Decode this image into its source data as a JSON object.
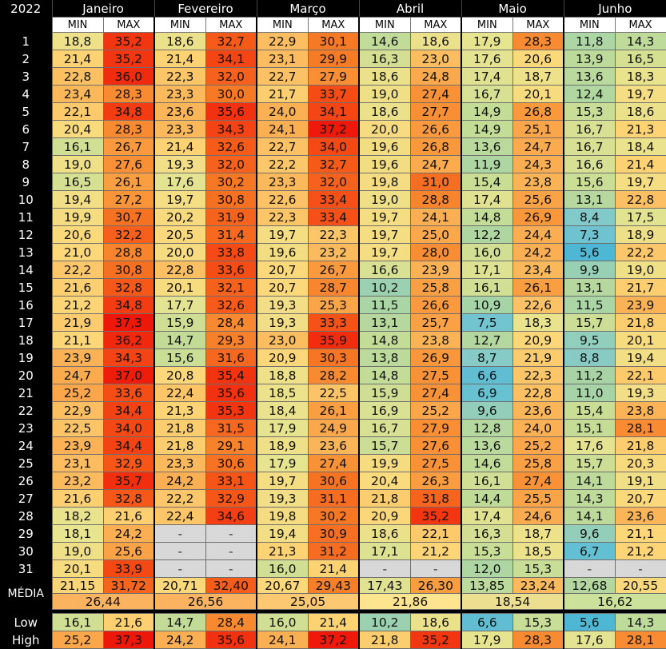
{
  "year": "2022",
  "sub_min": "MIN",
  "sub_max": "MAX",
  "months": [
    "Janeiro",
    "Fevereiro",
    "Março",
    "Abril",
    "Maio",
    "Junho"
  ],
  "days": [
    "1",
    "2",
    "3",
    "4",
    "5",
    "6",
    "7",
    "8",
    "9",
    "10",
    "11",
    "12",
    "13",
    "14",
    "15",
    "16",
    "17",
    "18",
    "19",
    "20",
    "21",
    "22",
    "23",
    "24",
    "25",
    "26",
    "27",
    "28",
    "29",
    "30",
    "31"
  ],
  "values": [
    [
      [
        "18,8",
        "35,2"
      ],
      [
        "21,4",
        "35,2"
      ],
      [
        "22,8",
        "36,0"
      ],
      [
        "23,4",
        "28,3"
      ],
      [
        "22,1",
        "34,8"
      ],
      [
        "20,4",
        "28,3"
      ],
      [
        "16,1",
        "26,7"
      ],
      [
        "19,0",
        "27,6"
      ],
      [
        "16,5",
        "26,1"
      ],
      [
        "19,4",
        "27,2"
      ],
      [
        "19,9",
        "30,7"
      ],
      [
        "20,6",
        "32,2"
      ],
      [
        "21,0",
        "28,8"
      ],
      [
        "22,2",
        "30,8"
      ],
      [
        "21,6",
        "32,8"
      ],
      [
        "21,2",
        "34,8"
      ],
      [
        "21,9",
        "37,3"
      ],
      [
        "21,1",
        "36,2"
      ],
      [
        "23,9",
        "34,3"
      ],
      [
        "24,7",
        "37,0"
      ],
      [
        "25,2",
        "33,6"
      ],
      [
        "22,9",
        "34,4"
      ],
      [
        "22,5",
        "34,0"
      ],
      [
        "23,9",
        "34,4"
      ],
      [
        "23,1",
        "32,9"
      ],
      [
        "23,2",
        "35,7"
      ],
      [
        "21,6",
        "32,8"
      ],
      [
        "18,2",
        "21,6"
      ],
      [
        "18,1",
        "24,2"
      ],
      [
        "19,0",
        "25,6"
      ],
      [
        "20,1",
        "33,9"
      ]
    ],
    [
      [
        "18,6",
        "32,7"
      ],
      [
        "21,4",
        "34,1"
      ],
      [
        "22,3",
        "32,0"
      ],
      [
        "23,3",
        "30,0"
      ],
      [
        "23,6",
        "35,6"
      ],
      [
        "23,3",
        "34,3"
      ],
      [
        "21,4",
        "32,6"
      ],
      [
        "19,3",
        "32,0"
      ],
      [
        "17,6",
        "30,2"
      ],
      [
        "19,7",
        "30,8"
      ],
      [
        "20,2",
        "31,9"
      ],
      [
        "20,5",
        "31,4"
      ],
      [
        "20,0",
        "33,8"
      ],
      [
        "22,8",
        "33,6"
      ],
      [
        "20,1",
        "32,1"
      ],
      [
        "17,7",
        "32,6"
      ],
      [
        "15,9",
        "28,4"
      ],
      [
        "14,7",
        "29,3"
      ],
      [
        "15,6",
        "31,6"
      ],
      [
        "20,8",
        "35,4"
      ],
      [
        "22,4",
        "35,6"
      ],
      [
        "21,3",
        "35,3"
      ],
      [
        "21,8",
        "31,5"
      ],
      [
        "21,8",
        "29,1"
      ],
      [
        "23,3",
        "30,6"
      ],
      [
        "24,2",
        "33,1"
      ],
      [
        "22,2",
        "32,9"
      ],
      [
        "22,4",
        "34,6"
      ],
      [
        "-",
        "-"
      ],
      [
        "-",
        "-"
      ],
      [
        "-",
        "-"
      ]
    ],
    [
      [
        "22,9",
        "30,1"
      ],
      [
        "23,1",
        "29,9"
      ],
      [
        "22,7",
        "27,9"
      ],
      [
        "21,7",
        "33,7"
      ],
      [
        "24,0",
        "34,1"
      ],
      [
        "24,1",
        "37,2"
      ],
      [
        "22,7",
        "34,0"
      ],
      [
        "22,2",
        "32,7"
      ],
      [
        "23,3",
        "32,0"
      ],
      [
        "22,6",
        "33,4"
      ],
      [
        "22,3",
        "33,4"
      ],
      [
        "19,7",
        "22,3"
      ],
      [
        "19,6",
        "23,2"
      ],
      [
        "20,7",
        "26,7"
      ],
      [
        "20,7",
        "28,7"
      ],
      [
        "19,3",
        "25,3"
      ],
      [
        "19,3",
        "33,3"
      ],
      [
        "23,0",
        "35,9"
      ],
      [
        "20,9",
        "30,3"
      ],
      [
        "18,8",
        "28,2"
      ],
      [
        "18,5",
        "22,5"
      ],
      [
        "18,4",
        "26,1"
      ],
      [
        "17,9",
        "24,9"
      ],
      [
        "18,9",
        "23,6"
      ],
      [
        "17,9",
        "27,4"
      ],
      [
        "19,7",
        "30,6"
      ],
      [
        "19,3",
        "31,1"
      ],
      [
        "19,8",
        "30,2"
      ],
      [
        "19,4",
        "30,9"
      ],
      [
        "21,3",
        "31,2"
      ],
      [
        "16,0",
        "21,4"
      ]
    ],
    [
      [
        "14,6",
        "18,6"
      ],
      [
        "16,3",
        "23,0"
      ],
      [
        "18,6",
        "24,8"
      ],
      [
        "19,0",
        "27,4"
      ],
      [
        "18,6",
        "27,7"
      ],
      [
        "20,0",
        "26,6"
      ],
      [
        "19,6",
        "26,8"
      ],
      [
        "19,6",
        "24,7"
      ],
      [
        "19,8",
        "31,0"
      ],
      [
        "19,0",
        "28,8"
      ],
      [
        "19,7",
        "24,1"
      ],
      [
        "19,7",
        "25,0"
      ],
      [
        "19,7",
        "28,0"
      ],
      [
        "16,6",
        "23,9"
      ],
      [
        "10,2",
        "25,8"
      ],
      [
        "11,5",
        "26,6"
      ],
      [
        "13,1",
        "25,7"
      ],
      [
        "14,8",
        "23,8"
      ],
      [
        "13,8",
        "26,9"
      ],
      [
        "14,8",
        "27,5"
      ],
      [
        "15,9",
        "27,4"
      ],
      [
        "16,9",
        "25,2"
      ],
      [
        "16,7",
        "27,9"
      ],
      [
        "15,7",
        "27,6"
      ],
      [
        "19,9",
        "27,5"
      ],
      [
        "20,4",
        "26,3"
      ],
      [
        "21,8",
        "31,8"
      ],
      [
        "20,9",
        "35,2"
      ],
      [
        "18,6",
        "22,1"
      ],
      [
        "17,1",
        "21,2"
      ],
      [
        "-",
        "-"
      ]
    ],
    [
      [
        "17,9",
        "28,3"
      ],
      [
        "17,6",
        "20,6"
      ],
      [
        "17,4",
        "18,7"
      ],
      [
        "16,7",
        "20,1"
      ],
      [
        "14,9",
        "26,8"
      ],
      [
        "14,9",
        "25,1"
      ],
      [
        "13,6",
        "24,7"
      ],
      [
        "11,9",
        "24,3"
      ],
      [
        "15,4",
        "23,8"
      ],
      [
        "17,4",
        "25,6"
      ],
      [
        "14,8",
        "26,9"
      ],
      [
        "12,2",
        "24,4"
      ],
      [
        "16,0",
        "24,2"
      ],
      [
        "17,1",
        "23,4"
      ],
      [
        "16,1",
        "26,1"
      ],
      [
        "10,9",
        "22,6"
      ],
      [
        "7,5",
        "18,3"
      ],
      [
        "12,7",
        "20,9"
      ],
      [
        "8,7",
        "21,9"
      ],
      [
        "6,6",
        "22,3"
      ],
      [
        "6,9",
        "22,8"
      ],
      [
        "9,6",
        "23,6"
      ],
      [
        "12,8",
        "24,0"
      ],
      [
        "13,6",
        "25,2"
      ],
      [
        "14,6",
        "25,8"
      ],
      [
        "16,1",
        "27,4"
      ],
      [
        "14,4",
        "25,5"
      ],
      [
        "17,4",
        "24,6"
      ],
      [
        "16,3",
        "18,7"
      ],
      [
        "15,3",
        "18,5"
      ],
      [
        "12,0",
        "15,3"
      ]
    ],
    [
      [
        "11,8",
        "14,3"
      ],
      [
        "13,9",
        "16,5"
      ],
      [
        "13,6",
        "18,3"
      ],
      [
        "12,4",
        "19,7"
      ],
      [
        "15,3",
        "18,6"
      ],
      [
        "16,7",
        "21,3"
      ],
      [
        "16,7",
        "18,4"
      ],
      [
        "16,6",
        "21,4"
      ],
      [
        "15,6",
        "19,7"
      ],
      [
        "13,1",
        "22,8"
      ],
      [
        "8,4",
        "17,5"
      ],
      [
        "7,3",
        "18,9"
      ],
      [
        "5,6",
        "22,2"
      ],
      [
        "9,9",
        "19,0"
      ],
      [
        "13,1",
        "21,7"
      ],
      [
        "11,5",
        "23,9"
      ],
      [
        "15,7",
        "21,8"
      ],
      [
        "9,5",
        "20,1"
      ],
      [
        "8,8",
        "19,4"
      ],
      [
        "11,2",
        "22,1"
      ],
      [
        "11,0",
        "19,3"
      ],
      [
        "15,4",
        "23,8"
      ],
      [
        "15,1",
        "28,1"
      ],
      [
        "17,6",
        "21,8"
      ],
      [
        "15,7",
        "20,3"
      ],
      [
        "14,1",
        "19,1"
      ],
      [
        "14,3",
        "20,7"
      ],
      [
        "14,1",
        "23,6"
      ],
      [
        "9,6",
        "21,1"
      ],
      [
        "6,7",
        "21,2"
      ],
      [
        "-",
        "-"
      ]
    ]
  ],
  "media_label": "MÉDIA",
  "media": [
    [
      "21,15",
      "31,72"
    ],
    [
      "20,71",
      "32,40"
    ],
    [
      "20,67",
      "29,43"
    ],
    [
      "17,43",
      "26,30"
    ],
    [
      "13,85",
      "23,24"
    ],
    [
      "12,68",
      "20,55"
    ]
  ],
  "media_total": [
    "26,44",
    "26,56",
    "25,05",
    "21,86",
    "18,54",
    "16,62"
  ],
  "media_total_colors": [
    "#fbb35f",
    "#fbb35f",
    "#fcc871",
    "#fde48e",
    "#ecdf8f",
    "#cce29a"
  ],
  "low_label": "Low",
  "low": [
    [
      "16,1",
      "21,6"
    ],
    [
      "14,7",
      "28,4"
    ],
    [
      "16,0",
      "21,4"
    ],
    [
      "10,2",
      "18,6"
    ],
    [
      "6,6",
      "15,3"
    ],
    [
      "5,6",
      "14,3"
    ]
  ],
  "high_label": "High",
  "high": [
    [
      "25,2",
      "37,3"
    ],
    [
      "24,2",
      "35,6"
    ],
    [
      "24,1",
      "37,2"
    ],
    [
      "21,8",
      "35,2"
    ],
    [
      "17,9",
      "28,3"
    ],
    [
      "17,6",
      "28,1"
    ]
  ]
}
